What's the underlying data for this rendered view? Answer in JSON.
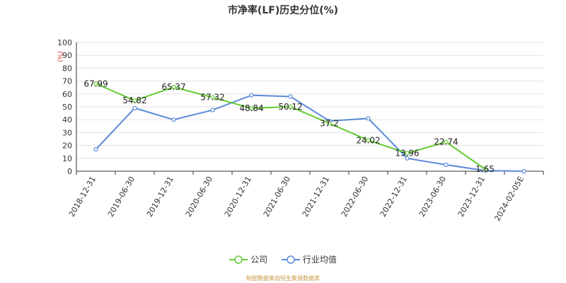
{
  "chart_data": {
    "type": "line",
    "title": "市净率(LF)历史分位(%)",
    "ylabel": "(%)",
    "ylim": [
      0,
      100
    ],
    "yticks": [
      0,
      10,
      20,
      30,
      40,
      50,
      60,
      70,
      80,
      90,
      100
    ],
    "grid": true,
    "legend_position": "bottom-center",
    "categories": [
      "2018-12-31",
      "2019-06-30",
      "2019-12-31",
      "2020-06-30",
      "2020-12-31",
      "2021-06-30",
      "2021-12-31",
      "2022-06-30",
      "2022-12-31",
      "2023-06-30",
      "2023-12-31",
      "2024-02-05E"
    ],
    "series": [
      {
        "name": "公司",
        "color": "#66cc33",
        "values": [
          67.99,
          54.82,
          65.37,
          57.32,
          48.84,
          50.12,
          37.2,
          24.02,
          13.96,
          22.74,
          1.65,
          null
        ],
        "labels": [
          "67.99",
          "54.82",
          "65.37",
          "57.32",
          "48.84",
          "50.12",
          "37.2",
          "24.02",
          "13.96",
          "22.74",
          "1.65",
          null
        ]
      },
      {
        "name": "行业均值",
        "color": "#5b8bd9",
        "values": [
          17,
          49,
          40,
          47.5,
          59,
          58,
          39,
          41,
          10,
          5,
          0.5,
          0
        ],
        "labels": null
      }
    ]
  },
  "source_note": "制图数据来自恒生聚源数据库"
}
